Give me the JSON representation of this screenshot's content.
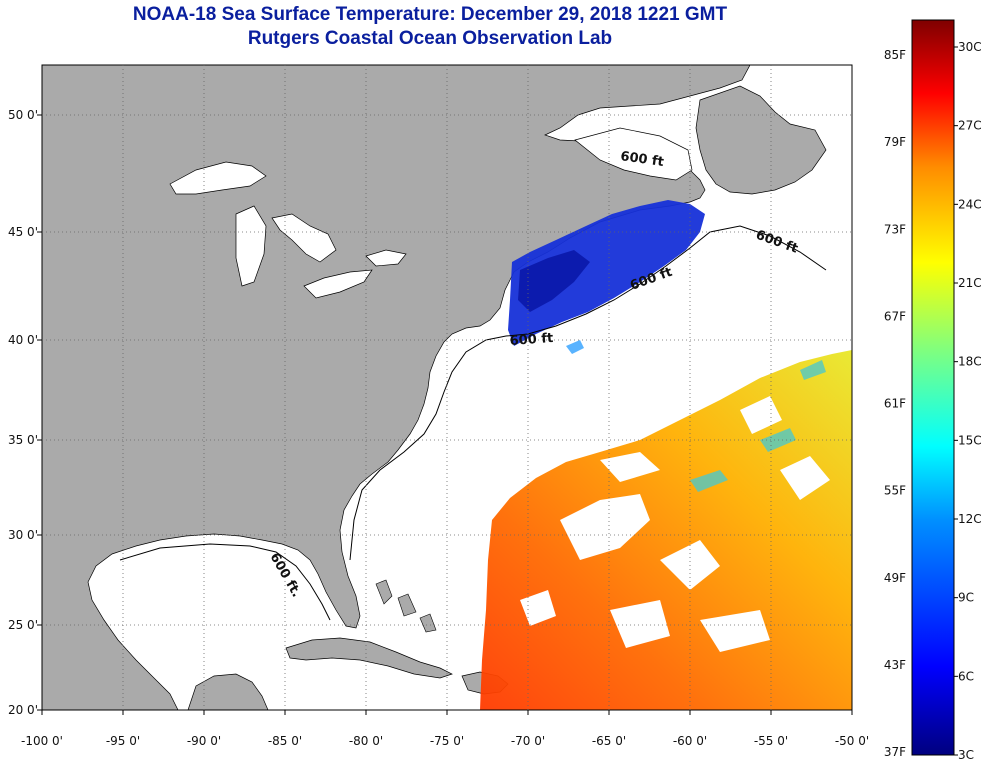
{
  "title": {
    "line1": "NOAA-18 Sea Surface Temperature:  December 29, 2018 1221 GMT",
    "line2": "Rutgers Coastal Ocean Observation Lab"
  },
  "axes": {
    "x_ticks": [
      "-100 0'",
      "-95 0'",
      "-90 0'",
      "-85 0'",
      "-80 0'",
      "-75 0'",
      "-70 0'",
      "-65 0'",
      "-60 0'",
      "-55 0'",
      "-50 0'"
    ],
    "y_ticks": [
      "50 0'",
      "45 0'",
      "40 0'",
      "35 0'",
      "30 0'",
      "25 0'",
      "20 0'"
    ]
  },
  "contour_labels": [
    "600 ft",
    "600 ft",
    "600 ft",
    "600 ft",
    "600 ft."
  ],
  "colorbar": {
    "f_labels": [
      "85F",
      "79F",
      "73F",
      "67F",
      "61F",
      "55F",
      "49F",
      "43F",
      "37F"
    ],
    "c_labels": [
      "30C",
      "27C",
      "24C",
      "21C",
      "18C",
      "15C",
      "12C",
      "9C",
      "6C",
      "3C"
    ]
  },
  "colors": {
    "land": "#aaaaaa",
    "water": "#ffffff",
    "title": "#0a1f9e"
  }
}
